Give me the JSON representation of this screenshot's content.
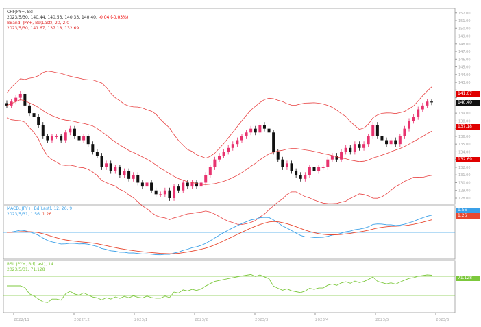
{
  "legend": {
    "price_title": "CHFJPY+, Bd",
    "price_ohlc": "2023/5/30, 140.44, 140.53, 140.33, 140.40,",
    "price_change": "-0.04 (-0.03%)",
    "bband_title": "BBand, JPY+, Bd(Last), 20, 2.0",
    "bband_values": "2023/5/30, 141.67, 137.18, 132.69",
    "macd_title": "MACD, JPY+, Bd(Last), 12, 26, 9",
    "macd_values": "2023/5/31, 1.56,",
    "macd_signal_value": "1.26",
    "rsi_title": "RSI, JPY+, Bd(Last), 14",
    "rsi_values": "2023/5/31, 71.128"
  },
  "tags": {
    "bb_upper": "141.67",
    "last_price": "140.40",
    "bb_mid": "137.18",
    "bb_lower": "132.69",
    "macd": "1.56",
    "signal": "1.26",
    "rsi": "71.128"
  },
  "colors": {
    "bull": "#e8336f",
    "bear": "#111111",
    "band": "#e84040",
    "macd": "#3aa0e8",
    "signal": "#e84830",
    "rsi": "#7cc83c",
    "tag_red": "#e00000",
    "tag_black": "#111111"
  },
  "chart_data": [
    {
      "type": "candlestick",
      "title": "CHFJPY+, Bd",
      "ylim": [
        127.2,
        152.6
      ],
      "overlays": [
        "Bollinger Bands (20, 2.0)"
      ],
      "closes": [
        140,
        140.5,
        141,
        141.5,
        140,
        139,
        138.5,
        137.5,
        136,
        135.5,
        136,
        136,
        135.5,
        136.5,
        137,
        136,
        135.5,
        136,
        135,
        134,
        133.5,
        132,
        132.5,
        131.5,
        132,
        131,
        131.5,
        130.5,
        131,
        130,
        129.5,
        130,
        129,
        128.5,
        128.5,
        129,
        128,
        129.5,
        129,
        130,
        129.5,
        130,
        129.5,
        130,
        131,
        132,
        133,
        133.5,
        134,
        134.5,
        135,
        135.5,
        136,
        136.5,
        137,
        136.5,
        137.5,
        137,
        136.5,
        134,
        133,
        132,
        132.5,
        131.5,
        131,
        130.5,
        131,
        132,
        131.5,
        132,
        132,
        133,
        133.5,
        133,
        134,
        134.5,
        134,
        135,
        134.5,
        135,
        136,
        137.5,
        136,
        135.5,
        135,
        135.5,
        135,
        136,
        137,
        138,
        138.5,
        139.5,
        140,
        140.5,
        140.4
      ],
      "x_tick_labels": [
        "2022/11",
        "2022/12",
        "2023/1",
        "2023/2",
        "2023/3",
        "2023/4",
        "2023/5",
        "2023/6"
      ]
    },
    {
      "type": "line",
      "title": "MACD (12, 26, 9)",
      "series": [
        {
          "name": "MACD"
        },
        {
          "name": "Signal"
        }
      ]
    },
    {
      "type": "line",
      "title": "RSI (14)",
      "levels": [
        70,
        30
      ]
    }
  ]
}
